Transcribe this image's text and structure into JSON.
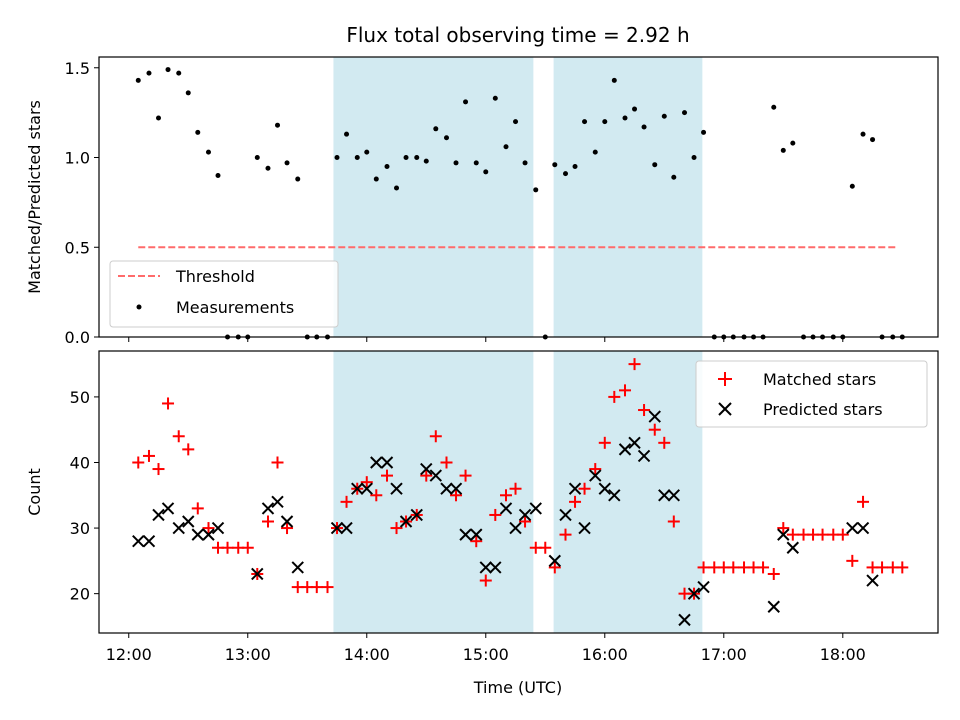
{
  "title": "Flux total observing time = 2.92 h",
  "colors": {
    "band": "#add8e6",
    "threshold": "#ff6b6b",
    "matched": "#ff0000",
    "predicted": "#000000"
  },
  "chart_data": [
    {
      "type": "scatter",
      "ylabel": "Matched/Predicted stars",
      "xlim": [
        11.75,
        18.8
      ],
      "ylim": [
        0,
        1.56
      ],
      "yticks": [
        0.0,
        0.5,
        1.0,
        1.5
      ],
      "ytick_labels": [
        "0.0",
        "0.5",
        "1.0",
        "1.5"
      ],
      "legend_position": "lower-left",
      "shaded_intervals": [
        [
          13.72,
          15.4
        ],
        [
          15.57,
          16.82
        ]
      ],
      "threshold": {
        "name": "Threshold",
        "y": 0.5,
        "x_range": [
          12.08,
          18.45
        ]
      },
      "series": [
        {
          "name": "Measurements",
          "x": [
            12.08,
            12.17,
            12.25,
            12.33,
            12.42,
            12.5,
            12.58,
            12.67,
            12.75,
            12.83,
            12.92,
            13.0,
            13.08,
            13.17,
            13.25,
            13.33,
            13.42,
            13.5,
            13.58,
            13.67,
            13.75,
            13.83,
            13.92,
            14.0,
            14.08,
            14.17,
            14.25,
            14.33,
            14.42,
            14.5,
            14.58,
            14.67,
            14.75,
            14.83,
            14.92,
            15.0,
            15.08,
            15.17,
            15.25,
            15.33,
            15.42,
            15.5,
            15.58,
            15.67,
            15.75,
            15.83,
            15.92,
            16.0,
            16.08,
            16.17,
            16.25,
            16.33,
            16.42,
            16.5,
            16.58,
            16.67,
            16.75,
            16.83,
            16.92,
            17.0,
            17.08,
            17.17,
            17.25,
            17.33,
            17.42,
            17.5,
            17.58,
            17.67,
            17.75,
            17.83,
            17.92,
            18.0,
            18.08,
            18.17,
            18.25,
            18.33,
            18.42,
            18.5
          ],
          "y": [
            1.43,
            1.47,
            1.22,
            1.49,
            1.47,
            1.36,
            1.14,
            1.03,
            0.9,
            0,
            0,
            0,
            1.0,
            0.94,
            1.18,
            0.97,
            0.88,
            0,
            0,
            0,
            1.0,
            1.13,
            1.0,
            1.03,
            0.88,
            0.95,
            0.83,
            1.0,
            1.0,
            0.98,
            1.16,
            1.11,
            0.97,
            1.31,
            0.97,
            0.92,
            1.33,
            1.06,
            1.2,
            0.97,
            0.82,
            0,
            0.96,
            0.91,
            0.95,
            1.2,
            1.03,
            1.2,
            1.43,
            1.22,
            1.27,
            1.17,
            0.96,
            1.23,
            0.89,
            1.25,
            1.0,
            1.14,
            0,
            0,
            0,
            0,
            0,
            0,
            1.28,
            1.04,
            1.08,
            0,
            0,
            0,
            0,
            0,
            0.84,
            1.13,
            1.1,
            0,
            0,
            0
          ]
        }
      ]
    },
    {
      "type": "scatter",
      "xlabel": "Time (UTC)",
      "ylabel": "Count",
      "xlim": [
        11.75,
        18.8
      ],
      "ylim": [
        14,
        57
      ],
      "yticks": [
        20,
        30,
        40,
        50
      ],
      "xticks": [
        12,
        13,
        14,
        15,
        16,
        17,
        18
      ],
      "xtick_labels": [
        "12:00",
        "13:00",
        "14:00",
        "15:00",
        "16:00",
        "17:00",
        "18:00"
      ],
      "legend_position": "top-right",
      "shaded_intervals": [
        [
          13.72,
          15.4
        ],
        [
          15.57,
          16.82
        ]
      ],
      "series": [
        {
          "name": "Matched stars",
          "marker": "+",
          "x": [
            12.08,
            12.17,
            12.25,
            12.33,
            12.42,
            12.5,
            12.58,
            12.67,
            12.75,
            12.83,
            12.92,
            13.0,
            13.08,
            13.17,
            13.25,
            13.33,
            13.42,
            13.5,
            13.58,
            13.67,
            13.75,
            13.83,
            13.92,
            14.0,
            14.08,
            14.17,
            14.25,
            14.33,
            14.42,
            14.5,
            14.58,
            14.67,
            14.75,
            14.83,
            14.92,
            15.0,
            15.08,
            15.17,
            15.25,
            15.33,
            15.42,
            15.5,
            15.58,
            15.67,
            15.75,
            15.83,
            15.92,
            16.0,
            16.08,
            16.17,
            16.25,
            16.33,
            16.42,
            16.5,
            16.58,
            16.67,
            16.75,
            16.83,
            16.92,
            17.0,
            17.08,
            17.17,
            17.25,
            17.33,
            17.42,
            17.5,
            17.58,
            17.67,
            17.75,
            17.83,
            17.92,
            18.0,
            18.08,
            18.17,
            18.25,
            18.33,
            18.42,
            18.5
          ],
          "y": [
            40,
            41,
            39,
            49,
            44,
            42,
            33,
            30,
            27,
            27,
            27,
            27,
            23,
            31,
            40,
            30,
            21,
            21,
            21,
            21,
            30,
            34,
            36,
            37,
            35,
            38,
            30,
            31,
            32,
            38,
            44,
            40,
            35,
            38,
            28,
            22,
            32,
            35,
            36,
            31,
            27,
            27,
            24,
            29,
            34,
            36,
            39,
            43,
            50,
            51,
            55,
            48,
            45,
            43,
            31,
            20,
            20,
            24,
            24,
            24,
            24,
            24,
            24,
            24,
            23,
            30,
            29,
            29,
            29,
            29,
            29,
            29,
            25,
            34,
            24,
            24,
            24,
            24
          ]
        },
        {
          "name": "Predicted stars",
          "marker": "x",
          "x": [
            12.08,
            12.17,
            12.25,
            12.33,
            12.42,
            12.5,
            12.58,
            12.67,
            12.75,
            13.08,
            13.17,
            13.25,
            13.33,
            13.42,
            13.75,
            13.83,
            13.92,
            14.0,
            14.08,
            14.17,
            14.25,
            14.33,
            14.42,
            14.5,
            14.58,
            14.67,
            14.75,
            14.83,
            14.92,
            15.0,
            15.08,
            15.17,
            15.25,
            15.33,
            15.42,
            15.58,
            15.67,
            15.75,
            15.83,
            15.92,
            16.0,
            16.08,
            16.17,
            16.25,
            16.33,
            16.42,
            16.5,
            16.58,
            16.67,
            16.75,
            16.83,
            17.42,
            17.5,
            17.58,
            18.08,
            18.17,
            18.25
          ],
          "y": [
            28,
            28,
            32,
            33,
            30,
            31,
            29,
            29,
            30,
            23,
            33,
            34,
            31,
            24,
            30,
            30,
            36,
            36,
            40,
            40,
            36,
            31,
            32,
            39,
            38,
            36,
            36,
            29,
            29,
            24,
            24,
            33,
            30,
            32,
            33,
            25,
            32,
            36,
            30,
            38,
            36,
            35,
            42,
            43,
            41,
            47,
            35,
            35,
            16,
            20,
            21,
            18,
            29,
            27,
            30,
            30,
            22
          ]
        }
      ]
    }
  ]
}
